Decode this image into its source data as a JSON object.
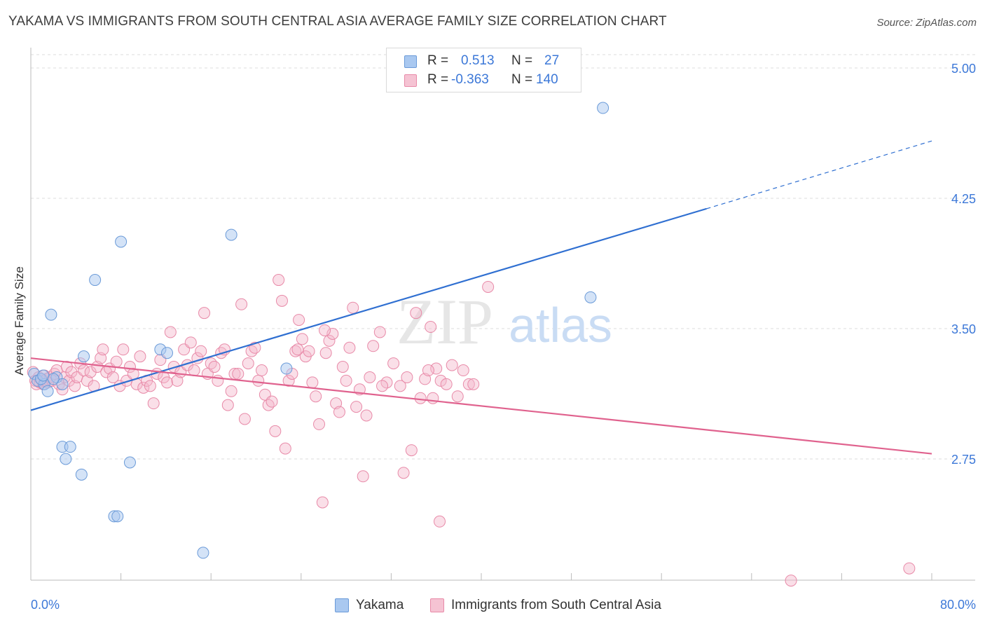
{
  "title": "YAKAMA VS IMMIGRANTS FROM SOUTH CENTRAL ASIA AVERAGE FAMILY SIZE CORRELATION CHART",
  "source": "Source: ZipAtlas.com",
  "watermark": {
    "zip": "ZIP",
    "atlas": "atlas"
  },
  "legend_top": {
    "rows": [
      {
        "r_label": "R =",
        "r_value": "0.513",
        "n_label": "N =",
        "n_value": "27"
      },
      {
        "r_label": "R =",
        "r_value": "-0.363",
        "n_label": "N =",
        "n_value": "140"
      }
    ]
  },
  "legend_bottom": {
    "series1": "Yakama",
    "series2": "Immigrants from South Central Asia"
  },
  "colors": {
    "blue_fill": "#a9c8f0",
    "blue_stroke": "#6a9ad8",
    "blue_line": "#2f6fd1",
    "pink_fill": "#f5b8cb",
    "pink_stroke": "#e88aa8",
    "pink_line": "#e0628e",
    "tick_label": "#3c78d8",
    "grid": "#dddddd"
  },
  "chart_data": {
    "type": "scatter",
    "title": "YAKAMA VS IMMIGRANTS FROM SOUTH CENTRAL ASIA AVERAGE FAMILY SIZE CORRELATION CHART",
    "xlabel": "",
    "ylabel": "Average Family Size",
    "xlim": [
      0,
      80
    ],
    "ylim": [
      2.0,
      5.12
    ],
    "x_tick_labels": [
      "0.0%",
      "80.0%"
    ],
    "y_ticks": [
      2.75,
      3.5,
      4.25,
      5.0
    ],
    "y_tick_labels": [
      "2.75",
      "3.50",
      "4.25",
      "5.00"
    ],
    "grid": true,
    "series": [
      {
        "name": "Yakama",
        "points": [
          [
            0.3,
            3.24
          ],
          [
            0.6,
            3.2
          ],
          [
            1.2,
            3.18
          ],
          [
            1.5,
            3.14
          ],
          [
            1.8,
            3.58
          ],
          [
            2.3,
            3.22
          ],
          [
            2.8,
            3.18
          ],
          [
            2.8,
            2.82
          ],
          [
            3.1,
            2.75
          ],
          [
            3.5,
            2.82
          ],
          [
            4.5,
            2.66
          ],
          [
            4.7,
            3.34
          ],
          [
            5.7,
            3.78
          ],
          [
            7.4,
            2.42
          ],
          [
            7.7,
            2.42
          ],
          [
            8.0,
            4.0
          ],
          [
            8.8,
            2.73
          ],
          [
            11.5,
            3.38
          ],
          [
            12.1,
            3.36
          ],
          [
            15.3,
            2.21
          ],
          [
            17.8,
            4.04
          ],
          [
            22.7,
            3.27
          ],
          [
            49.7,
            3.68
          ],
          [
            50.8,
            4.77
          ],
          [
            0.9,
            3.21
          ],
          [
            1.1,
            3.23
          ],
          [
            2.0,
            3.21
          ]
        ],
        "trend": {
          "x": [
            0,
            60,
            80
          ],
          "y": [
            3.03,
            4.19,
            4.58
          ],
          "solid_to": 60
        }
      },
      {
        "name": "Immigrants from South Central Asia",
        "points": [
          [
            0.2,
            3.25
          ],
          [
            0.4,
            3.2
          ],
          [
            0.5,
            3.18
          ],
          [
            0.7,
            3.22
          ],
          [
            0.8,
            3.19
          ],
          [
            0.9,
            3.21
          ],
          [
            1.0,
            3.2
          ],
          [
            1.1,
            3.18
          ],
          [
            1.2,
            3.23
          ],
          [
            1.3,
            3.2
          ],
          [
            1.4,
            3.21
          ],
          [
            1.5,
            3.19
          ],
          [
            1.7,
            3.22
          ],
          [
            1.9,
            3.2
          ],
          [
            2.1,
            3.24
          ],
          [
            2.3,
            3.26
          ],
          [
            2.5,
            3.18
          ],
          [
            2.8,
            3.15
          ],
          [
            3.0,
            3.22
          ],
          [
            3.2,
            3.28
          ],
          [
            3.4,
            3.2
          ],
          [
            3.6,
            3.25
          ],
          [
            3.9,
            3.17
          ],
          [
            4.1,
            3.22
          ],
          [
            4.4,
            3.3
          ],
          [
            4.7,
            3.26
          ],
          [
            5.0,
            3.2
          ],
          [
            5.3,
            3.25
          ],
          [
            5.6,
            3.17
          ],
          [
            5.9,
            3.28
          ],
          [
            6.2,
            3.33
          ],
          [
            6.4,
            3.38
          ],
          [
            6.7,
            3.25
          ],
          [
            7.0,
            3.27
          ],
          [
            7.3,
            3.22
          ],
          [
            7.6,
            3.31
          ],
          [
            7.9,
            3.17
          ],
          [
            8.2,
            3.38
          ],
          [
            8.5,
            3.2
          ],
          [
            8.8,
            3.28
          ],
          [
            9.1,
            3.24
          ],
          [
            9.4,
            3.18
          ],
          [
            9.7,
            3.34
          ],
          [
            10.0,
            3.16
          ],
          [
            10.3,
            3.2
          ],
          [
            10.6,
            3.17
          ],
          [
            10.9,
            3.07
          ],
          [
            11.2,
            3.24
          ],
          [
            11.5,
            3.32
          ],
          [
            11.8,
            3.22
          ],
          [
            12.1,
            3.19
          ],
          [
            12.4,
            3.48
          ],
          [
            12.7,
            3.28
          ],
          [
            13.0,
            3.2
          ],
          [
            13.3,
            3.25
          ],
          [
            13.6,
            3.38
          ],
          [
            13.9,
            3.29
          ],
          [
            14.2,
            3.42
          ],
          [
            14.5,
            3.26
          ],
          [
            14.8,
            3.33
          ],
          [
            15.1,
            3.37
          ],
          [
            15.4,
            3.59
          ],
          [
            15.7,
            3.24
          ],
          [
            16.0,
            3.3
          ],
          [
            16.3,
            3.28
          ],
          [
            16.6,
            3.2
          ],
          [
            16.9,
            3.36
          ],
          [
            17.2,
            3.38
          ],
          [
            17.5,
            3.06
          ],
          [
            17.8,
            3.14
          ],
          [
            18.1,
            3.24
          ],
          [
            18.4,
            3.24
          ],
          [
            18.7,
            3.64
          ],
          [
            19.0,
            2.98
          ],
          [
            19.3,
            3.3
          ],
          [
            19.6,
            3.37
          ],
          [
            19.9,
            3.39
          ],
          [
            20.2,
            3.2
          ],
          [
            20.5,
            3.26
          ],
          [
            20.8,
            3.12
          ],
          [
            21.1,
            3.06
          ],
          [
            21.4,
            3.08
          ],
          [
            21.7,
            2.91
          ],
          [
            22.0,
            3.78
          ],
          [
            22.3,
            3.66
          ],
          [
            22.6,
            2.81
          ],
          [
            22.9,
            3.2
          ],
          [
            23.2,
            3.24
          ],
          [
            23.5,
            3.37
          ],
          [
            23.8,
            3.55
          ],
          [
            24.1,
            3.44
          ],
          [
            24.4,
            3.34
          ],
          [
            24.7,
            3.37
          ],
          [
            25.0,
            3.19
          ],
          [
            25.3,
            3.11
          ],
          [
            25.6,
            2.95
          ],
          [
            25.9,
            2.5
          ],
          [
            26.2,
            3.36
          ],
          [
            26.5,
            3.43
          ],
          [
            26.8,
            3.47
          ],
          [
            27.1,
            3.07
          ],
          [
            27.4,
            3.02
          ],
          [
            27.7,
            3.28
          ],
          [
            28.0,
            3.2
          ],
          [
            28.3,
            3.39
          ],
          [
            28.6,
            3.62
          ],
          [
            28.9,
            3.05
          ],
          [
            29.2,
            3.15
          ],
          [
            29.5,
            2.65
          ],
          [
            29.8,
            3.0
          ],
          [
            30.1,
            3.22
          ],
          [
            30.4,
            3.4
          ],
          [
            31.0,
            3.48
          ],
          [
            31.6,
            3.19
          ],
          [
            32.2,
            3.3
          ],
          [
            32.8,
            3.17
          ],
          [
            33.4,
            3.22
          ],
          [
            33.8,
            2.8
          ],
          [
            34.2,
            3.59
          ],
          [
            34.6,
            3.1
          ],
          [
            35.0,
            3.21
          ],
          [
            35.5,
            3.51
          ],
          [
            36.0,
            3.27
          ],
          [
            36.4,
            3.2
          ],
          [
            36.9,
            3.18
          ],
          [
            37.4,
            3.29
          ],
          [
            37.9,
            3.11
          ],
          [
            38.4,
            3.26
          ],
          [
            38.9,
            3.18
          ],
          [
            39.3,
            3.18
          ],
          [
            40.6,
            3.74
          ],
          [
            33.1,
            2.67
          ],
          [
            35.7,
            3.1
          ],
          [
            36.3,
            2.39
          ],
          [
            67.5,
            2.05
          ],
          [
            78.0,
            2.12
          ],
          [
            31.2,
            3.17
          ],
          [
            35.3,
            3.26
          ],
          [
            26.1,
            3.49
          ],
          [
            23.7,
            3.38
          ]
        ],
        "trend": {
          "x": [
            0,
            80
          ],
          "y": [
            3.33,
            2.78
          ]
        }
      }
    ]
  }
}
